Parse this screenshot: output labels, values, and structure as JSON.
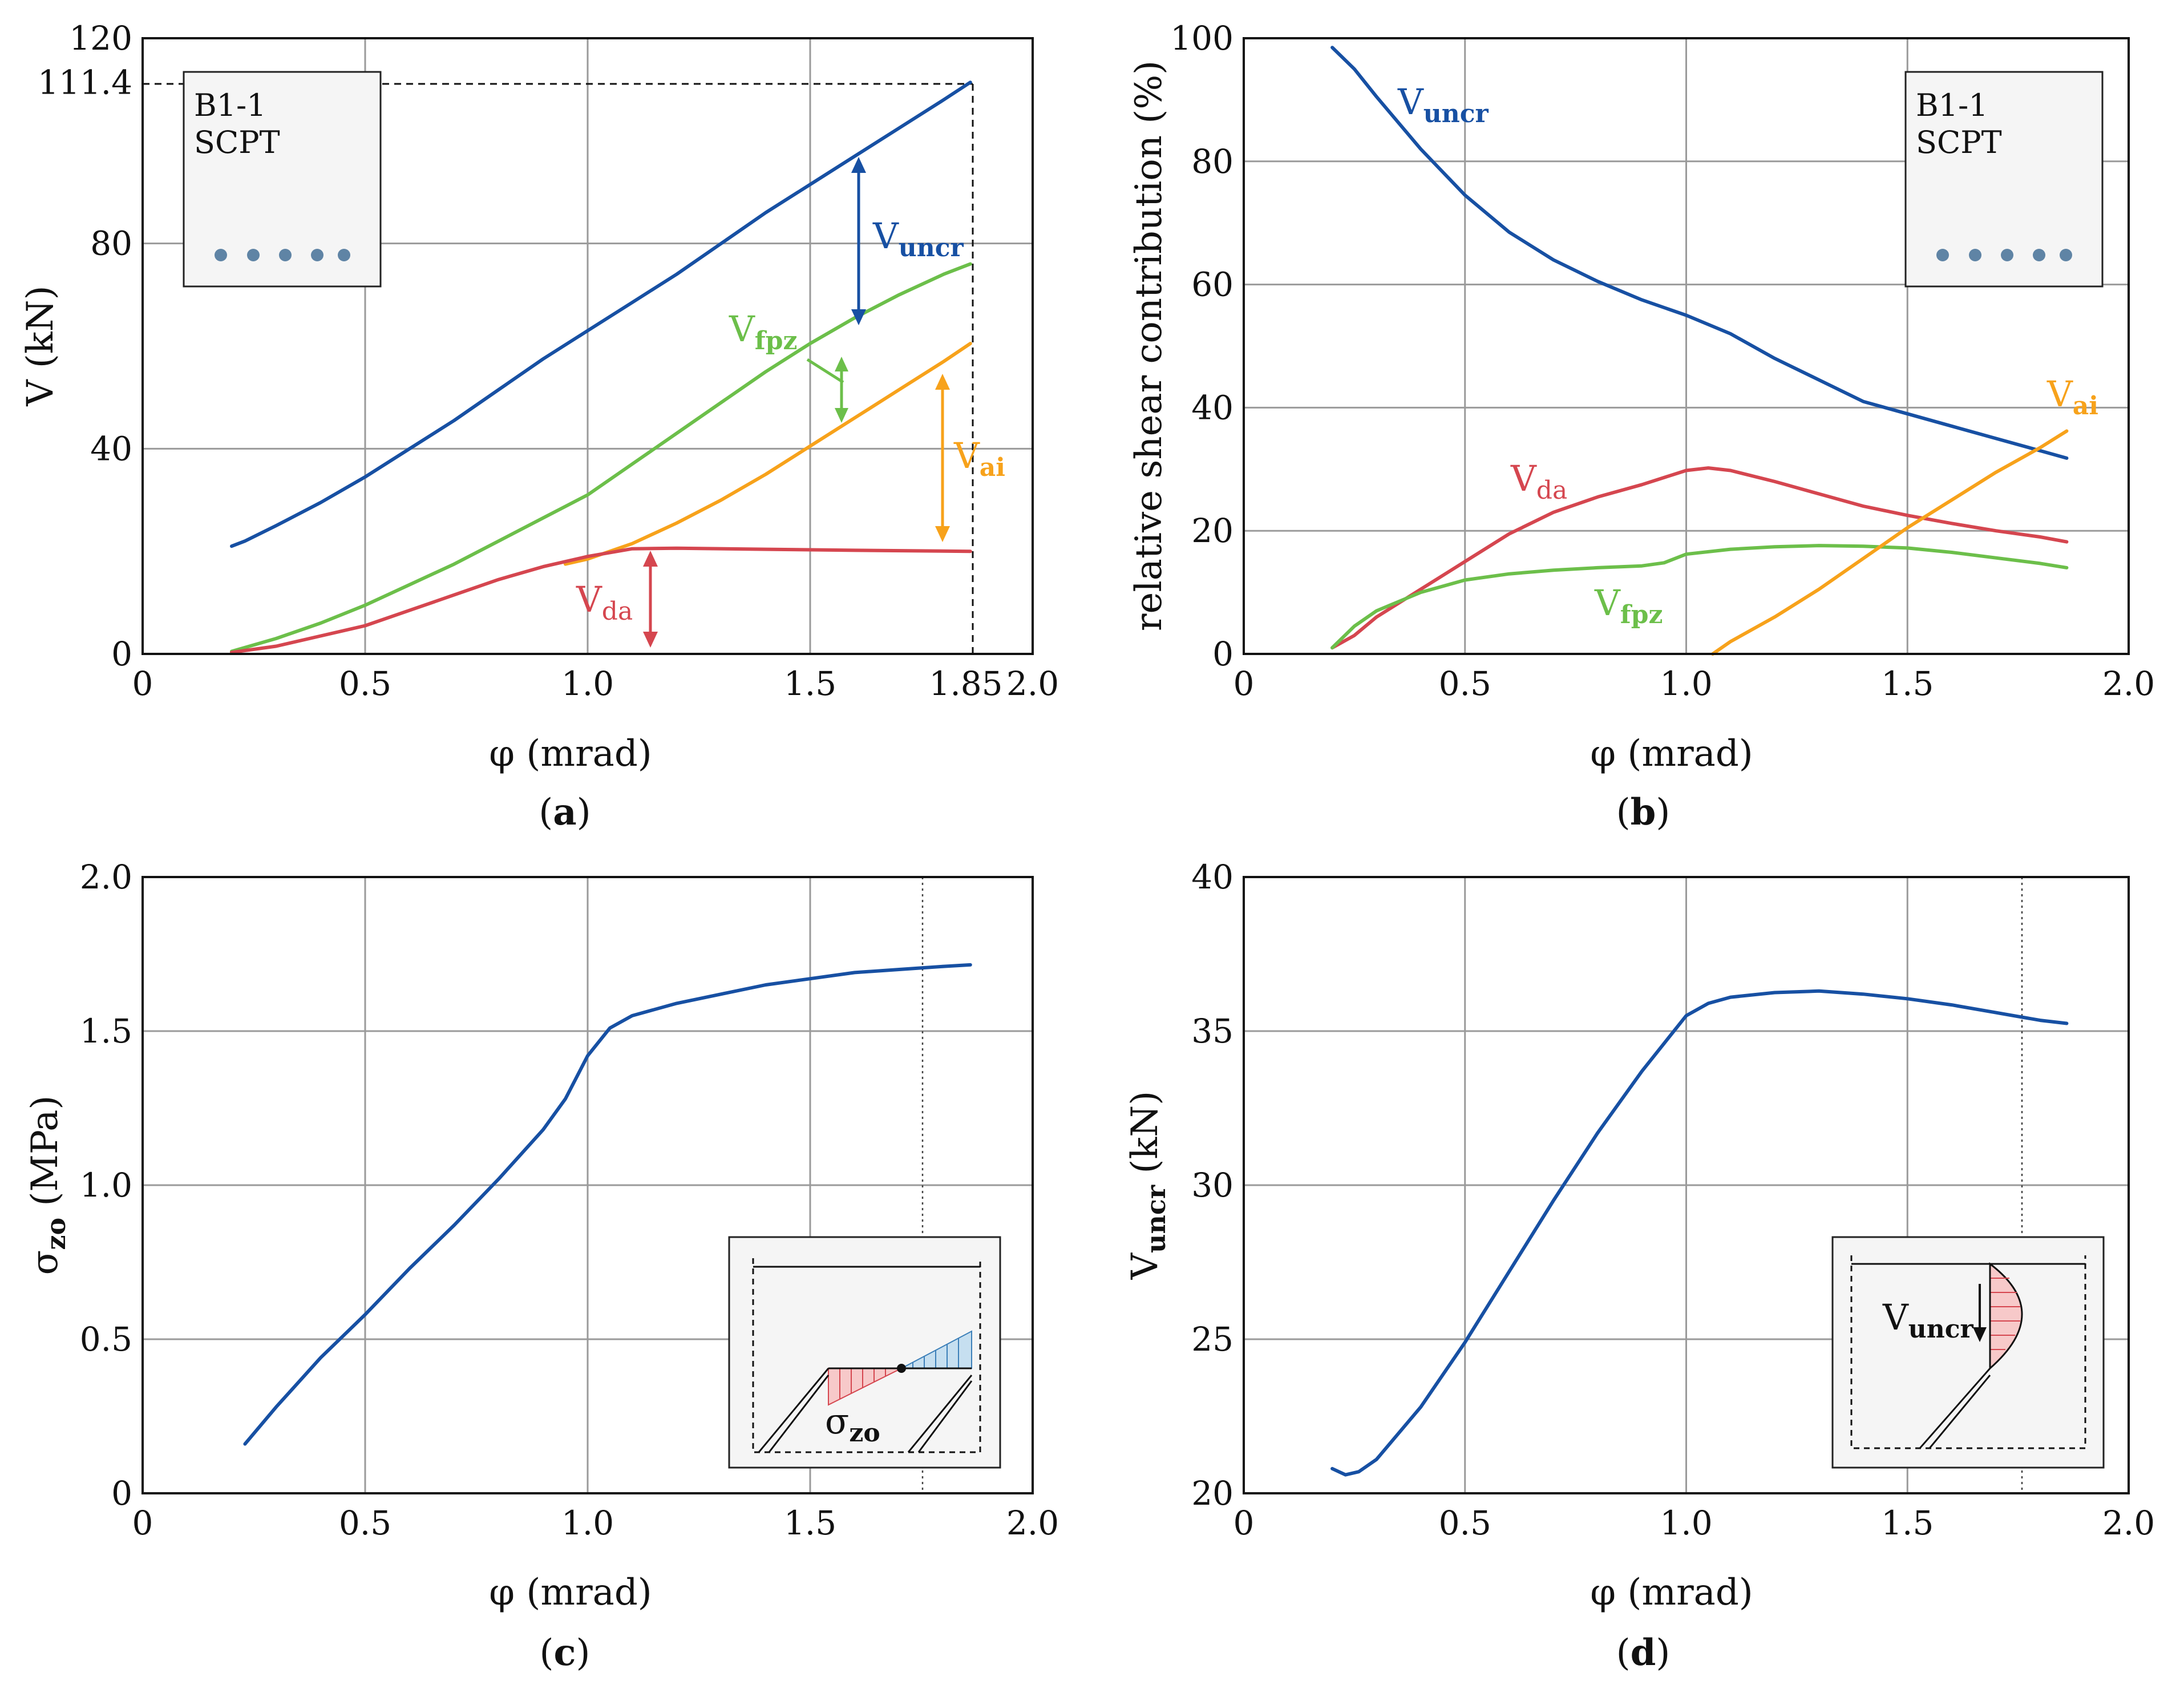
{
  "colors": {
    "uncr": "#1750a3",
    "fpz": "#6cbf4a",
    "ai": "#f7a21b",
    "da": "#d5464f",
    "dot": "#5f84a5",
    "inset_bg": "#f5f5f5",
    "pink_fill": "#f7c9c9",
    "blue_fill": "#c6dff0"
  },
  "chart_data": [
    {
      "id": "a",
      "type": "line",
      "caption": "a",
      "xlabel": "φ (mrad)",
      "ylabel": "V (kN)",
      "xlim": [
        0,
        2.0
      ],
      "ylim": [
        0,
        120
      ],
      "xticks": [
        0,
        0.5,
        1.0,
        1.5,
        1.85,
        2.0
      ],
      "xtick_labels": [
        "0",
        "0.5",
        "1.0",
        "1.5",
        "1.85",
        "2.0"
      ],
      "yticks": [
        0,
        40,
        80,
        111.4,
        120
      ],
      "ytick_labels": [
        "0",
        "40",
        "80",
        "111.4",
        "120"
      ],
      "xgrid": [
        0.5,
        1.0,
        1.5
      ],
      "ygrid": [
        40,
        80
      ],
      "reference": {
        "x": 1.86,
        "y": 111.4,
        "style": "dashed"
      },
      "inset": {
        "lines": [
          "B1-1",
          "SCPT"
        ]
      },
      "series": [
        {
          "name": "V_uncr",
          "label_main": "V",
          "label_sub": "uncr",
          "color_key": "uncr",
          "x": [
            0.2,
            0.23,
            0.3,
            0.4,
            0.5,
            0.6,
            0.7,
            0.8,
            0.9,
            1.0,
            1.1,
            1.2,
            1.3,
            1.4,
            1.5,
            1.6,
            1.7,
            1.8,
            1.86
          ],
          "y": [
            21,
            22,
            25,
            29.5,
            34.5,
            40,
            45.5,
            51.5,
            57.5,
            63,
            68.5,
            74,
            80,
            86,
            91.5,
            97,
            102.5,
            108,
            111.4
          ]
        },
        {
          "name": "V_fpz",
          "label_main": "V",
          "label_sub": "fpz",
          "color_key": "fpz",
          "x": [
            0.2,
            0.3,
            0.4,
            0.5,
            0.6,
            0.7,
            0.8,
            0.9,
            1.0,
            1.1,
            1.2,
            1.3,
            1.4,
            1.5,
            1.6,
            1.7,
            1.8,
            1.86
          ],
          "y": [
            0.5,
            3,
            6,
            9.5,
            13.5,
            17.5,
            22,
            26.5,
            31,
            37,
            43,
            49,
            55,
            60.5,
            65.5,
            70,
            74,
            76
          ]
        },
        {
          "name": "V_ai",
          "label_main": "V",
          "label_sub": "ai",
          "color_key": "ai",
          "x": [
            0.95,
            1.0,
            1.1,
            1.2,
            1.3,
            1.4,
            1.5,
            1.6,
            1.7,
            1.8,
            1.86
          ],
          "y": [
            17.5,
            18.5,
            21.5,
            25.5,
            30,
            35,
            40.5,
            46,
            51.5,
            57,
            60.5
          ]
        },
        {
          "name": "V_da",
          "label_main": "V",
          "label_sub": "da",
          "color_key": "da",
          "x": [
            0.2,
            0.3,
            0.4,
            0.5,
            0.6,
            0.7,
            0.8,
            0.9,
            1.0,
            1.1,
            1.2,
            1.4,
            1.6,
            1.86
          ],
          "y": [
            0.3,
            1.5,
            3.5,
            5.5,
            8.5,
            11.5,
            14.5,
            17,
            19,
            20.5,
            20.6,
            20.4,
            20.2,
            20
          ]
        }
      ]
    },
    {
      "id": "b",
      "type": "line",
      "caption": "b",
      "xlabel": "φ (mrad)",
      "ylabel": "relative shear contribution (%)",
      "xlim": [
        0,
        2.0
      ],
      "ylim": [
        0,
        100
      ],
      "xticks": [
        0,
        0.5,
        1.0,
        1.5,
        2.0
      ],
      "xtick_labels": [
        "0",
        "0.5",
        "1.0",
        "1.5",
        "2.0"
      ],
      "yticks": [
        0,
        20,
        40,
        60,
        80,
        100
      ],
      "ytick_labels": [
        "0",
        "20",
        "40",
        "60",
        "80",
        "100"
      ],
      "xgrid": [
        0.5,
        1.0,
        1.5
      ],
      "ygrid": [
        20,
        40,
        60,
        80
      ],
      "inset": {
        "lines": [
          "B1-1",
          "SCPT"
        ]
      },
      "series": [
        {
          "name": "V_uncr",
          "label_main": "V",
          "label_sub": "uncr",
          "color_key": "uncr",
          "x": [
            0.2,
            0.25,
            0.3,
            0.4,
            0.5,
            0.6,
            0.7,
            0.8,
            0.9,
            1.0,
            1.1,
            1.2,
            1.3,
            1.4,
            1.5,
            1.6,
            1.7,
            1.8,
            1.86
          ],
          "y": [
            98.5,
            95,
            90.5,
            82,
            74.5,
            68.5,
            64,
            60.5,
            57.5,
            55,
            52,
            48,
            44.5,
            41,
            39,
            37,
            35,
            33,
            31.8
          ]
        },
        {
          "name": "V_da",
          "label_main": "V",
          "label_sub": "da",
          "color_key": "da",
          "x": [
            0.2,
            0.25,
            0.3,
            0.4,
            0.5,
            0.6,
            0.7,
            0.8,
            0.9,
            1.0,
            1.05,
            1.1,
            1.2,
            1.3,
            1.4,
            1.5,
            1.6,
            1.7,
            1.8,
            1.86
          ],
          "y": [
            1,
            3,
            6,
            10.5,
            15,
            19.5,
            23,
            25.5,
            27.5,
            29.8,
            30.2,
            29.8,
            28,
            26,
            24,
            22.5,
            21.2,
            20,
            19,
            18.2
          ]
        },
        {
          "name": "V_fpz",
          "label_main": "V",
          "label_sub": "fpz",
          "color_key": "fpz",
          "x": [
            0.2,
            0.25,
            0.3,
            0.4,
            0.5,
            0.6,
            0.7,
            0.8,
            0.9,
            0.95,
            1.0,
            1.1,
            1.2,
            1.3,
            1.4,
            1.5,
            1.6,
            1.7,
            1.8,
            1.86
          ],
          "y": [
            1,
            4.5,
            7,
            10,
            12,
            13,
            13.6,
            14,
            14.3,
            14.8,
            16.2,
            17,
            17.4,
            17.6,
            17.5,
            17.2,
            16.5,
            15.6,
            14.7,
            14
          ]
        },
        {
          "name": "V_ai",
          "label_main": "V",
          "label_sub": "ai",
          "color_key": "ai",
          "x": [
            1.06,
            1.1,
            1.2,
            1.3,
            1.4,
            1.5,
            1.6,
            1.7,
            1.8,
            1.86
          ],
          "y": [
            0,
            2,
            6,
            10.5,
            15.5,
            20.5,
            25,
            29.5,
            33.5,
            36.2
          ]
        }
      ]
    },
    {
      "id": "c",
      "type": "line",
      "caption": "c",
      "xlabel": "φ (mrad)",
      "ylabel_main": "σ",
      "ylabel_sub": "zo",
      "ylabel_rest": " (MPa)",
      "xlim": [
        0,
        2.0
      ],
      "ylim": [
        0,
        2.0
      ],
      "xticks": [
        0,
        0.5,
        1.0,
        1.5,
        2.0
      ],
      "xtick_labels": [
        "0",
        "0.5",
        "1.0",
        "1.5",
        "2.0"
      ],
      "yticks": [
        0,
        0.5,
        1.0,
        1.5,
        2.0
      ],
      "ytick_labels": [
        "0",
        "0.5",
        "1.0",
        "1.5",
        "2.0"
      ],
      "xgrid": [
        0.5,
        1.0,
        1.5
      ],
      "ygrid": [
        0.5,
        1.0,
        1.5
      ],
      "reference": {
        "x": 1.75,
        "style": "dotted"
      },
      "inset": {
        "label_main": "σ",
        "label_sub": "zo"
      },
      "series": [
        {
          "name": "sigma_zo",
          "color_key": "uncr",
          "x": [
            0.23,
            0.3,
            0.4,
            0.5,
            0.6,
            0.7,
            0.8,
            0.9,
            0.95,
            1.0,
            1.05,
            1.1,
            1.2,
            1.3,
            1.4,
            1.5,
            1.6,
            1.7,
            1.8,
            1.86
          ],
          "y": [
            0.16,
            0.28,
            0.44,
            0.58,
            0.73,
            0.87,
            1.02,
            1.18,
            1.28,
            1.42,
            1.51,
            1.55,
            1.59,
            1.62,
            1.65,
            1.67,
            1.69,
            1.7,
            1.71,
            1.715
          ]
        }
      ]
    },
    {
      "id": "d",
      "type": "line",
      "caption": "d",
      "xlabel": "φ (mrad)",
      "ylabel_main": "V",
      "ylabel_sub": "uncr",
      "ylabel_rest": " (kN)",
      "xlim": [
        0,
        2.0
      ],
      "ylim": [
        20,
        40
      ],
      "xticks": [
        0,
        0.5,
        1.0,
        1.5,
        2.0
      ],
      "xtick_labels": [
        "0",
        "0.5",
        "1.0",
        "1.5",
        "2.0"
      ],
      "yticks": [
        20,
        25,
        30,
        35,
        40
      ],
      "ytick_labels": [
        "20",
        "25",
        "30",
        "35",
        "40"
      ],
      "xgrid": [
        0.5,
        1.0,
        1.5
      ],
      "ygrid": [
        25,
        30,
        35
      ],
      "reference": {
        "x": 1.75,
        "style": "dotted"
      },
      "inset": {
        "label_main": "V",
        "label_sub": "uncr"
      },
      "series": [
        {
          "name": "V_uncr",
          "color_key": "uncr",
          "x": [
            0.2,
            0.23,
            0.26,
            0.3,
            0.4,
            0.5,
            0.6,
            0.7,
            0.8,
            0.9,
            0.95,
            1.0,
            1.05,
            1.1,
            1.2,
            1.3,
            1.4,
            1.5,
            1.6,
            1.7,
            1.8,
            1.86
          ],
          "y": [
            20.8,
            20.6,
            20.7,
            21.1,
            22.8,
            24.9,
            27.2,
            29.5,
            31.7,
            33.7,
            34.6,
            35.5,
            35.9,
            36.1,
            36.25,
            36.3,
            36.2,
            36.05,
            35.85,
            35.6,
            35.35,
            35.25
          ]
        }
      ]
    }
  ]
}
